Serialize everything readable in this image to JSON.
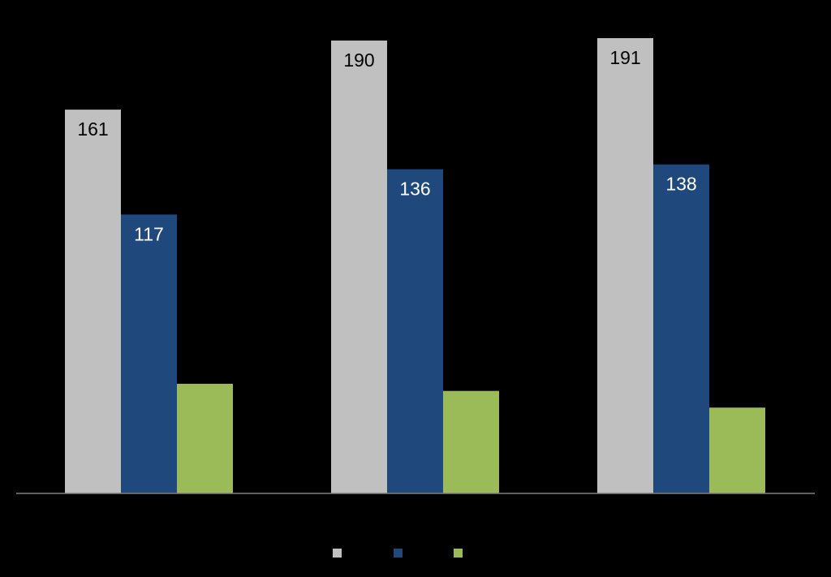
{
  "chart_data": {
    "type": "bar",
    "categories": [
      "",
      "",
      ""
    ],
    "series": [
      {
        "values": [
          161,
          190,
          191
        ],
        "color": "#c0c0c0",
        "label_color": "#000000",
        "show_labels": true
      },
      {
        "values": [
          117,
          136,
          138
        ],
        "color": "#1f497d",
        "label_color": "#ffffff",
        "show_labels": true
      },
      {
        "values": [
          46,
          43,
          36
        ],
        "color": "#9bbb59",
        "label_color": "#000000",
        "show_labels": false
      }
    ],
    "ylim": [
      0,
      191
    ],
    "grid": false,
    "legend_position": "bottom-center",
    "background": "#000000",
    "axis_color": "#808080"
  }
}
